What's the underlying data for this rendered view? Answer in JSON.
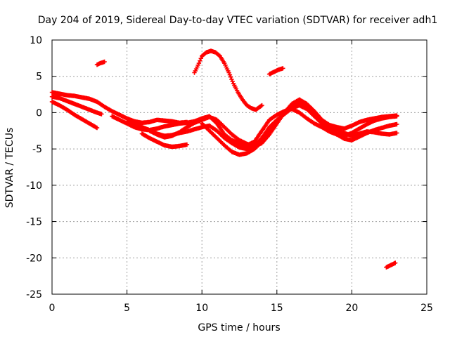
{
  "chart_data": {
    "type": "scatter",
    "title": "Day 204 of 2019, Sidereal Day-to-day VTEC variation (SDTVAR) for receiver adh1",
    "xlabel": "GPS time / hours",
    "ylabel": "SDTVAR / TECUs",
    "xlim": [
      0,
      25
    ],
    "ylim": [
      -25,
      10
    ],
    "xticks": [
      0,
      5,
      10,
      15,
      20,
      25
    ],
    "yticks": [
      10,
      5,
      0,
      -5,
      -10,
      -15,
      -20,
      -25
    ],
    "grid": true,
    "marker": "plus",
    "color": "#ff0000",
    "series": [
      {
        "name": "track-a",
        "x": [
          0.0,
          0.5,
          1.0,
          1.5,
          2.0,
          2.5,
          3.0,
          3.5,
          4.0,
          4.5,
          5.0,
          5.5,
          6.0,
          6.5,
          7.0,
          7.5,
          8.0,
          8.5,
          9.0
        ],
        "y": [
          2.8,
          2.6,
          2.4,
          2.3,
          2.1,
          1.9,
          1.5,
          0.8,
          0.2,
          -0.3,
          -0.8,
          -1.2,
          -1.4,
          -1.3,
          -1.0,
          -1.1,
          -1.2,
          -1.4,
          -1.3
        ]
      },
      {
        "name": "track-b",
        "x": [
          0.0,
          0.5,
          1.0,
          1.5,
          2.0,
          2.5,
          3.0
        ],
        "y": [
          1.5,
          1.0,
          0.4,
          -0.3,
          -0.9,
          -1.5,
          -2.1
        ]
      },
      {
        "name": "track-c",
        "x": [
          0.0,
          0.5,
          1.0,
          1.5,
          2.0,
          2.5,
          3.0,
          3.3
        ],
        "y": [
          2.2,
          2.0,
          1.6,
          1.2,
          0.8,
          0.4,
          0.0,
          -0.2
        ]
      },
      {
        "name": "track-d",
        "x": [
          3.0,
          3.2,
          3.5
        ],
        "y": [
          6.6,
          6.8,
          7.0
        ]
      },
      {
        "name": "track-e",
        "x": [
          4.0,
          4.5,
          5.0,
          5.5,
          6.0,
          6.5,
          7.0,
          7.5,
          8.0,
          8.5,
          9.0,
          9.5,
          10.0,
          10.5,
          11.0,
          11.5,
          12.0,
          12.5,
          13.0,
          13.5,
          14.0,
          14.5,
          15.0,
          15.5,
          16.0,
          16.5,
          17.0,
          17.5,
          18.0,
          18.5,
          19.0,
          19.5,
          20.0,
          20.5,
          21.0,
          21.5,
          22.0,
          22.5,
          23.0
        ],
        "y": [
          -0.5,
          -1.0,
          -1.5,
          -2.0,
          -2.3,
          -2.4,
          -2.2,
          -1.9,
          -1.7,
          -1.5,
          -1.4,
          -1.2,
          -0.8,
          -0.5,
          -1.5,
          -3.0,
          -3.8,
          -4.2,
          -4.5,
          -4.0,
          -2.5,
          -1.0,
          -0.3,
          0.2,
          0.5,
          0.0,
          -0.8,
          -1.5,
          -2.0,
          -2.6,
          -3.0,
          -3.2,
          -2.8,
          -2.2,
          -1.6,
          -1.1,
          -0.8,
          -0.6,
          -0.5
        ]
      },
      {
        "name": "track-f",
        "x": [
          5.0,
          5.5,
          6.0,
          6.5,
          7.0,
          7.5,
          8.0,
          8.5,
          9.0,
          9.5,
          10.0,
          10.5,
          11.0,
          11.5,
          12.0,
          12.5,
          13.0,
          13.5,
          14.0,
          14.5,
          15.0,
          15.5,
          16.0,
          16.5,
          17.0,
          17.5,
          18.0,
          18.5,
          19.0,
          19.5,
          20.0,
          20.5,
          21.0,
          21.5,
          22.0,
          22.5,
          23.0
        ],
        "y": [
          -1.2,
          -1.6,
          -2.0,
          -2.4,
          -2.9,
          -3.2,
          -3.1,
          -2.8,
          -2.6,
          -2.3,
          -2.0,
          -1.8,
          -2.5,
          -3.5,
          -4.2,
          -4.8,
          -5.0,
          -4.6,
          -3.5,
          -2.0,
          -1.0,
          -0.2,
          0.6,
          1.0,
          0.5,
          -0.5,
          -1.5,
          -2.3,
          -3.0,
          -3.6,
          -3.8,
          -3.3,
          -2.8,
          -2.4,
          -2.1,
          -1.8,
          -1.6
        ]
      },
      {
        "name": "track-g",
        "x": [
          6.5,
          7.0,
          7.5,
          8.0,
          8.5,
          9.0,
          9.5,
          10.0,
          10.5,
          11.0,
          11.5,
          12.0,
          12.5,
          13.0,
          13.5,
          14.0,
          14.5,
          15.0,
          15.5,
          16.0,
          16.5,
          17.0,
          17.5,
          18.0,
          18.5,
          19.0,
          19.5,
          20.0,
          20.5,
          21.0,
          21.5,
          22.0,
          22.5,
          23.0
        ],
        "y": [
          -2.5,
          -3.0,
          -3.4,
          -3.2,
          -2.7,
          -2.0,
          -1.4,
          -1.0,
          -0.6,
          -1.0,
          -2.0,
          -3.0,
          -3.8,
          -4.3,
          -4.6,
          -4.2,
          -3.0,
          -1.5,
          0.0,
          1.2,
          1.8,
          1.2,
          0.2,
          -1.0,
          -1.7,
          -2.0,
          -2.2,
          -1.8,
          -1.3,
          -1.0,
          -0.8,
          -0.6,
          -0.5,
          -0.4
        ]
      },
      {
        "name": "track-h",
        "x": [
          6.0,
          6.5,
          7.0,
          7.5,
          8.0,
          8.5,
          9.0
        ],
        "y": [
          -2.9,
          -3.5,
          -4.0,
          -4.5,
          -4.7,
          -4.6,
          -4.4
        ]
      },
      {
        "name": "track-i",
        "x": [
          10.0,
          10.5,
          11.0,
          11.5,
          12.0,
          12.5,
          13.0,
          13.5,
          14.0,
          14.5,
          15.0,
          15.5,
          16.0,
          16.5,
          17.0,
          17.5,
          18.0,
          18.5,
          19.0,
          19.5,
          20.0,
          20.5,
          21.0,
          21.5,
          22.0,
          22.5,
          23.0
        ],
        "y": [
          -1.5,
          -2.5,
          -3.5,
          -4.5,
          -5.4,
          -5.8,
          -5.6,
          -5.0,
          -4.0,
          -2.6,
          -1.2,
          0.0,
          0.8,
          1.4,
          1.0,
          -0.3,
          -1.3,
          -2.0,
          -2.4,
          -2.8,
          -3.2,
          -2.9,
          -2.6,
          -2.7,
          -2.9,
          -3.0,
          -2.8
        ]
      },
      {
        "name": "track-j",
        "x": [
          9.5,
          9.8,
          10.0,
          10.3,
          10.6,
          10.9,
          11.2,
          11.5,
          11.8,
          12.1,
          12.4,
          12.7,
          13.0,
          13.3,
          13.6,
          14.0
        ],
        "y": [
          5.5,
          6.8,
          7.8,
          8.3,
          8.5,
          8.3,
          7.8,
          6.8,
          5.5,
          4.0,
          2.8,
          1.8,
          1.0,
          0.6,
          0.4,
          1.0
        ]
      },
      {
        "name": "track-k",
        "x": [
          14.5,
          14.8,
          15.1,
          15.4
        ],
        "y": [
          5.3,
          5.6,
          5.9,
          6.1
        ]
      },
      {
        "name": "track-l",
        "x": [
          22.3,
          22.6,
          22.9
        ],
        "y": [
          -21.3,
          -21.0,
          -20.7
        ]
      }
    ]
  }
}
